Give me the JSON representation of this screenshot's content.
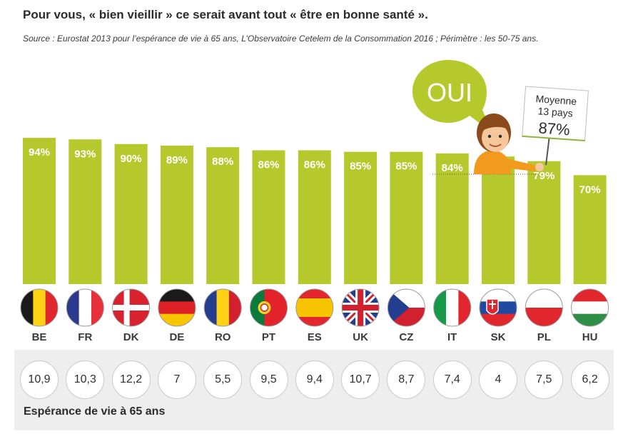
{
  "header": {
    "title": "Pour vous, « bien vieillir » ce serait avant tout « être en bonne santé ».",
    "source": "Source : Eurostat 2013 pour l’espérance de vie à 65 ans, L’Observatoire Cetelem de la Consommation 2016 ; Périmètre : les 50-75 ans."
  },
  "colors": {
    "bar": "#b5c92d",
    "bubble": "#b5c92d",
    "panel": "#eeeeef"
  },
  "chart_data": {
    "type": "bar",
    "categories": [
      "BE",
      "FR",
      "DK",
      "DE",
      "RO",
      "PT",
      "ES",
      "UK",
      "CZ",
      "IT",
      "SK",
      "PL",
      "HU"
    ],
    "values": [
      94,
      93,
      90,
      89,
      88,
      86,
      86,
      85,
      85,
      84,
      82,
      79,
      70
    ],
    "value_labels": [
      "94%",
      "93%",
      "90%",
      "89%",
      "88%",
      "86%",
      "86%",
      "85%",
      "85%",
      "84%",
      "82%",
      "79%",
      "70%"
    ],
    "unit": "%",
    "ylim": [
      0,
      100
    ],
    "grid": false,
    "legend": "none"
  },
  "callout": {
    "bubble_text": "OUI",
    "sign_line1": "Moyenne",
    "sign_line2": "13 pays",
    "sign_value": "87%"
  },
  "life_expectancy": {
    "label": "Espérance de vie à 65 ans",
    "values": [
      "10,9",
      "10,3",
      "12,2",
      "7",
      "5,5",
      "9,5",
      "9,4",
      "10,7",
      "8,7",
      "7,4",
      "4",
      "7,5",
      "6,2"
    ]
  },
  "flags": [
    "belgium-flag-icon",
    "france-flag-icon",
    "denmark-flag-icon",
    "germany-flag-icon",
    "romania-flag-icon",
    "portugal-flag-icon",
    "spain-flag-icon",
    "uk-flag-icon",
    "czech-flag-icon",
    "italy-flag-icon",
    "slovakia-flag-icon",
    "poland-flag-icon",
    "hungary-flag-icon"
  ]
}
